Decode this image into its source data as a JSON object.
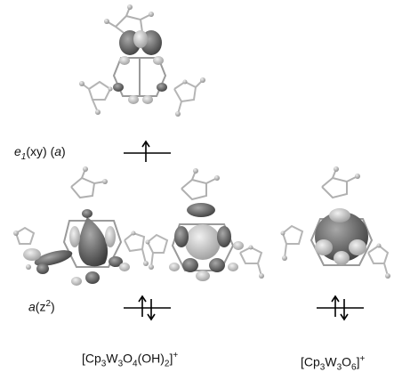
{
  "orbital_labels": {
    "e1": {
      "symbol": "e",
      "sub": "1",
      "rest": "(xy)  (",
      "sym": "a",
      "close": ")"
    },
    "a": {
      "symbol": "a",
      "paren_open": "(z",
      "sup": "2",
      "paren_close": ")"
    }
  },
  "electron_occupancy": {
    "e1": {
      "electrons": 1
    },
    "a_left": {
      "electrons": 2
    },
    "a_right": {
      "electrons": 2
    }
  },
  "compound_labels": {
    "left": {
      "a": "[Cp",
      "s1": "3",
      "b": "W",
      "s2": "3",
      "c": "O",
      "s3": "4",
      "d": "(OH)",
      "s4": "2",
      "e": "]",
      "charge": "+"
    },
    "right": {
      "a": "[Cp",
      "s1": "3",
      "b": "W",
      "s2": "3",
      "c": "O",
      "s3": "6",
      "e": "]",
      "charge": "+"
    }
  },
  "colors": {
    "lobe_dark": "#4a4a4a",
    "lobe_mid": "#8a8a8a",
    "lobe_light": "#c9c9c9",
    "frame": "#9a9a9a"
  }
}
